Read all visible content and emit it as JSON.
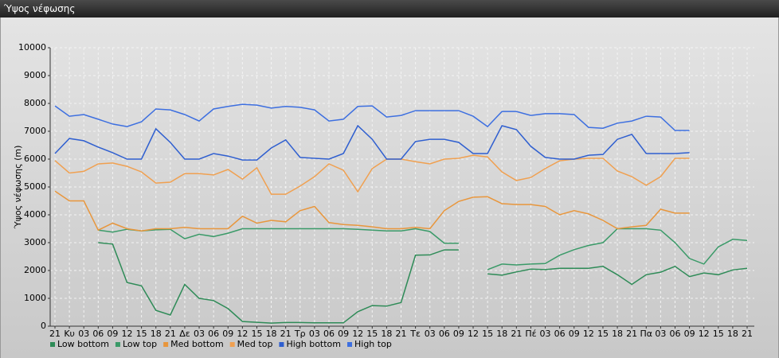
{
  "chart_data": {
    "type": "line",
    "title": "Ύψος νέφωσης",
    "y_label": "Ύψος νέφωσης (m)",
    "categories": [
      "21",
      "Κυ",
      "03",
      "06",
      "09",
      "12",
      "15",
      "18",
      "21",
      "Δε",
      "03",
      "06",
      "09",
      "12",
      "15",
      "18",
      "21",
      "Τρ",
      "03",
      "06",
      "09",
      "12",
      "15",
      "18",
      "21",
      "Τε",
      "03",
      "06",
      "09",
      "12",
      "15",
      "18",
      "21",
      "Πέ",
      "03",
      "06",
      "09",
      "12",
      "15",
      "18",
      "21",
      "Πα",
      "03",
      "06",
      "09",
      "12",
      "15",
      "18",
      "21"
    ],
    "ylim": [
      0,
      10000
    ],
    "yticks": [
      0,
      1000,
      2000,
      3000,
      4000,
      5000,
      6000,
      7000,
      8000,
      9000,
      10000
    ],
    "grid": true,
    "legend": "bottom",
    "series": [
      {
        "name": "Low bottom",
        "color": "#2e8b57",
        "values": [
          null,
          null,
          null,
          3000,
          2950,
          1570,
          1450,
          570,
          400,
          1500,
          1000,
          920,
          630,
          170,
          140,
          110,
          130,
          130,
          120,
          120,
          120,
          520,
          740,
          720,
          850,
          2550,
          2560,
          2740,
          2740,
          null,
          1880,
          1830,
          1950,
          2050,
          2030,
          2080,
          2080,
          2080,
          2150,
          1850,
          1500,
          1850,
          1940,
          2150,
          1780,
          1910,
          1850,
          2020,
          2080
        ]
      },
      {
        "name": "Low top",
        "color": "#3a9a68",
        "values": [
          null,
          null,
          null,
          3450,
          3380,
          3480,
          3420,
          3460,
          3480,
          3140,
          3300,
          3220,
          3340,
          3500,
          3500,
          3500,
          3500,
          3500,
          3500,
          3500,
          3500,
          3480,
          3450,
          3420,
          3420,
          3500,
          3400,
          2980,
          2980,
          null,
          2030,
          2230,
          2200,
          2230,
          2250,
          2550,
          2750,
          2900,
          3000,
          3500,
          3500,
          3500,
          3450,
          3000,
          2430,
          2230,
          2850,
          3120,
          3080
        ]
      },
      {
        "name": "Med bottom",
        "color": "#e8963c",
        "values": [
          4850,
          4500,
          4500,
          3450,
          3700,
          3500,
          3420,
          3500,
          3500,
          3550,
          3500,
          3500,
          3500,
          3950,
          3700,
          3800,
          3750,
          4150,
          4300,
          3720,
          3650,
          3620,
          3570,
          3500,
          3500,
          3550,
          3500,
          4150,
          4480,
          4630,
          4650,
          4400,
          4370,
          4370,
          4300,
          4000,
          4150,
          4030,
          3800,
          3500,
          3570,
          3620,
          4200,
          4060,
          4060,
          null,
          null,
          null,
          null
        ]
      },
      {
        "name": "Med top",
        "color": "#f0a050",
        "values": [
          5950,
          5500,
          5560,
          5830,
          5860,
          5740,
          5540,
          5140,
          5170,
          5480,
          5480,
          5430,
          5630,
          5280,
          5690,
          4740,
          4740,
          5030,
          5370,
          5830,
          5600,
          4830,
          5660,
          6000,
          6000,
          5910,
          5830,
          6000,
          6030,
          6140,
          6080,
          5540,
          5230,
          5340,
          5660,
          5940,
          6000,
          6030,
          6030,
          5570,
          5370,
          5060,
          5370,
          6030,
          6030,
          null,
          null,
          null,
          null
        ]
      },
      {
        "name": "High bottom",
        "color": "#2f5fd0",
        "values": [
          6200,
          6740,
          6660,
          6430,
          6230,
          6000,
          6000,
          7090,
          6600,
          6000,
          6000,
          6200,
          6110,
          5970,
          5970,
          6400,
          6690,
          6060,
          6030,
          6000,
          6200,
          7200,
          6710,
          6000,
          6000,
          6630,
          6710,
          6710,
          6600,
          6200,
          6200,
          7200,
          7060,
          6460,
          6060,
          6000,
          6000,
          6140,
          6170,
          6710,
          6890,
          6200,
          6200,
          6200,
          6230,
          null,
          null,
          null,
          null
        ]
      },
      {
        "name": "High top",
        "color": "#3d6fe0",
        "values": [
          7910,
          7540,
          7600,
          7430,
          7260,
          7170,
          7340,
          7800,
          7770,
          7600,
          7370,
          7800,
          7890,
          7970,
          7940,
          7830,
          7890,
          7860,
          7770,
          7370,
          7430,
          7890,
          7910,
          7510,
          7570,
          7740,
          7740,
          7740,
          7740,
          7540,
          7170,
          7710,
          7710,
          7570,
          7630,
          7630,
          7600,
          7140,
          7110,
          7290,
          7370,
          7540,
          7510,
          7030,
          7030,
          null,
          null,
          null,
          null
        ]
      }
    ]
  }
}
